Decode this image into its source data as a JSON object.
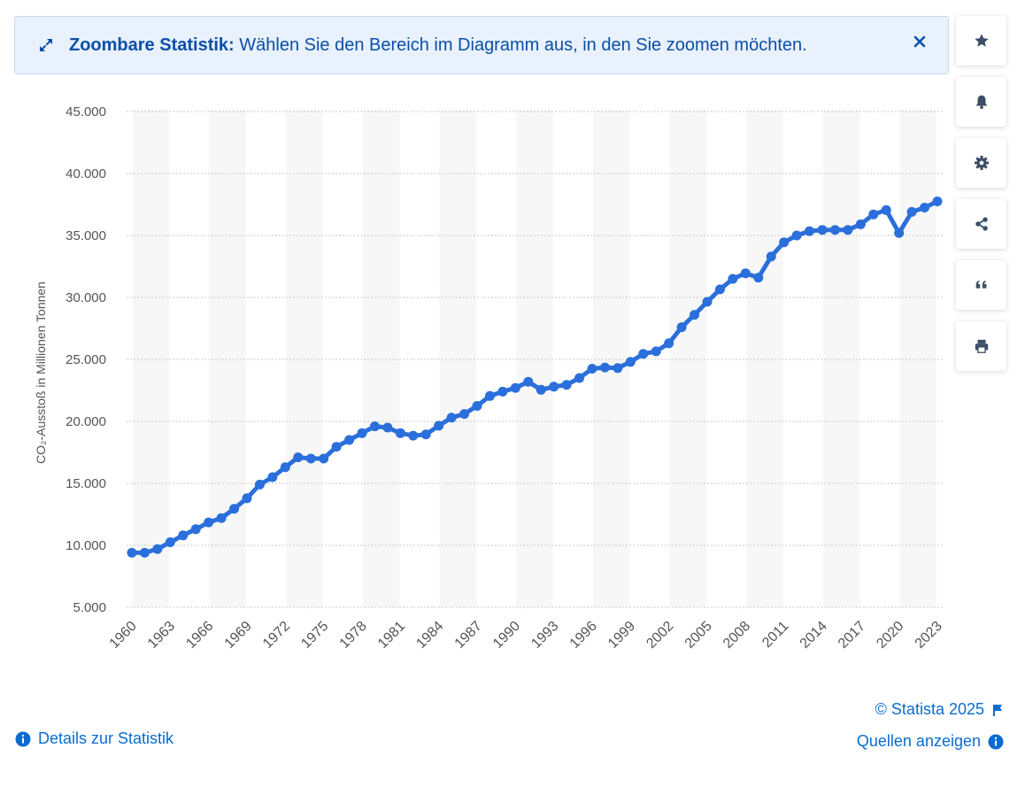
{
  "banner": {
    "title": "Zoombare Statistik:",
    "message": "Wählen Sie den Bereich im Diagramm aus, in den Sie zoomen möchten."
  },
  "sidebar": {
    "items": [
      {
        "name": "favorite",
        "icon": "star-icon"
      },
      {
        "name": "notification",
        "icon": "bell-icon"
      },
      {
        "name": "settings",
        "icon": "gear-icon"
      },
      {
        "name": "share",
        "icon": "share-icon"
      },
      {
        "name": "cite",
        "icon": "quote-icon"
      },
      {
        "name": "print",
        "icon": "printer-icon"
      }
    ]
  },
  "footer": {
    "details": "Details zur Statistik",
    "copyright": "© Statista 2025",
    "sources": "Quellen anzeigen"
  },
  "colors": {
    "accent": "#2a6fdb",
    "link": "#0b6bd1",
    "banner_bg": "#e8f1fc"
  },
  "chart_data": {
    "type": "line",
    "title": "",
    "xlabel": "",
    "ylabel": "CO₂-Ausstoß in Millionen Tonnen",
    "ylim": [
      5000,
      45000
    ],
    "yticks": [
      5000,
      10000,
      15000,
      20000,
      25000,
      30000,
      35000,
      40000,
      45000
    ],
    "ytick_labels": [
      "5.000",
      "10.000",
      "15.000",
      "20.000",
      "25.000",
      "30.000",
      "35.000",
      "40.000",
      "45.000"
    ],
    "xtick_labels": [
      "1960",
      "1963",
      "1966",
      "1969",
      "1972",
      "1975",
      "1978",
      "1981",
      "1984",
      "1987",
      "1990",
      "1993",
      "1996",
      "1999",
      "2002",
      "2005",
      "2008",
      "2011",
      "2014",
      "2017",
      "2020",
      "2023"
    ],
    "grid": true,
    "series": [
      {
        "name": "CO₂-Ausstoß",
        "x": [
          1960,
          1961,
          1962,
          1963,
          1964,
          1965,
          1966,
          1967,
          1968,
          1969,
          1970,
          1971,
          1972,
          1973,
          1974,
          1975,
          1976,
          1977,
          1978,
          1979,
          1980,
          1981,
          1982,
          1983,
          1984,
          1985,
          1986,
          1987,
          1988,
          1989,
          1990,
          1991,
          1992,
          1993,
          1994,
          1995,
          1996,
          1997,
          1998,
          1999,
          2000,
          2001,
          2002,
          2003,
          2004,
          2005,
          2006,
          2007,
          2008,
          2009,
          2010,
          2011,
          2012,
          2013,
          2014,
          2015,
          2016,
          2017,
          2018,
          2019,
          2020,
          2021,
          2022,
          2023
        ],
        "values": [
          9400,
          9400,
          9700,
          10250,
          10800,
          11300,
          11850,
          12200,
          12950,
          13800,
          14900,
          15500,
          16300,
          17100,
          17000,
          17000,
          17950,
          18500,
          19050,
          19600,
          19500,
          19050,
          18850,
          18950,
          19650,
          20300,
          20600,
          21250,
          22050,
          22400,
          22700,
          23200,
          22550,
          22800,
          22950,
          23500,
          24250,
          24350,
          24300,
          24800,
          25450,
          25650,
          26300,
          27600,
          28600,
          29650,
          30650,
          31500,
          31950,
          31600,
          33300,
          34450,
          35000,
          35350,
          35450,
          35450,
          35450,
          35900,
          36700,
          37050,
          35200,
          36900,
          37250,
          37750
        ]
      }
    ]
  }
}
